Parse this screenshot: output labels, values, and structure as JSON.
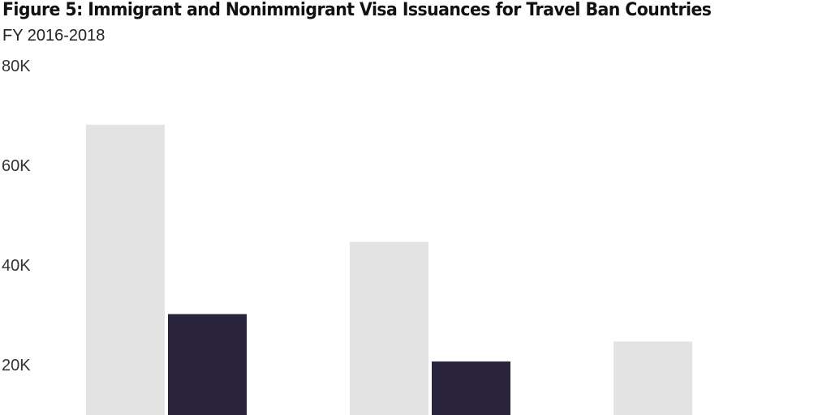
{
  "title": "Figure 5: Immigrant and Nonimmigrant Visa Issuances for Travel Ban Countries",
  "subtitle": "FY 2016-2018",
  "colors": {
    "series_light": "#e3e3e3",
    "series_dark": "#2a253c"
  },
  "chart_data": {
    "type": "bar",
    "title": "Figure 5: Immigrant and Nonimmigrant Visa Issuances for Travel Ban Countries",
    "subtitle": "FY 2016-2018",
    "categories": [
      "",
      "",
      ""
    ],
    "series": [
      {
        "values": [
          68000,
          44500,
          24500
        ]
      },
      {
        "values": [
          30000,
          20500,
          null
        ]
      }
    ],
    "y_ticks": [
      {
        "value": 80000,
        "label": "80K"
      },
      {
        "value": 60000,
        "label": "60K"
      },
      {
        "value": 40000,
        "label": "40K"
      },
      {
        "value": 20000,
        "label": "20K"
      }
    ],
    "ylim": [
      0,
      80000
    ],
    "grid": false,
    "legend": "none"
  }
}
